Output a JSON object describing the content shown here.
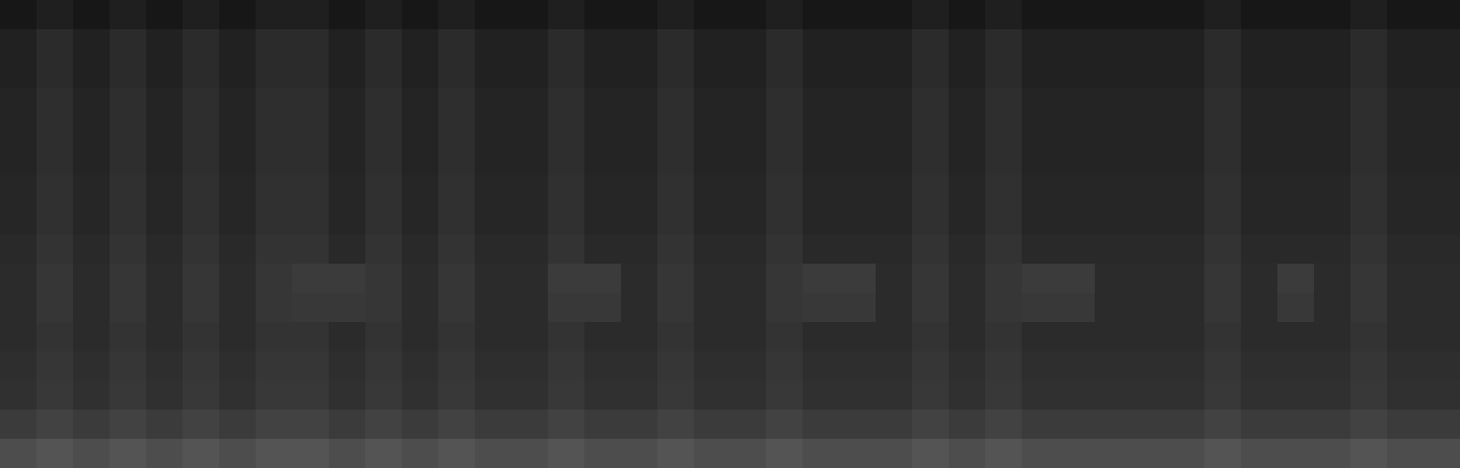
{
  "chart_data": {
    "type": "heatmap",
    "tick_labels": false,
    "zlim": [
      0,
      100
    ],
    "cells": [
      [
        9,
        12,
        9,
        12,
        9,
        12,
        9,
        12,
        12,
        9,
        12,
        9,
        12,
        9,
        9,
        12,
        9,
        9,
        12,
        9,
        9,
        12,
        9,
        9,
        9,
        12,
        9,
        12,
        9,
        9,
        9,
        9,
        9,
        12,
        9,
        9,
        9,
        12,
        9,
        9
      ],
      [
        13,
        17,
        13,
        17,
        13,
        17,
        13,
        17,
        17,
        13,
        17,
        13,
        17,
        13,
        13,
        17,
        13,
        13,
        17,
        13,
        13,
        17,
        13,
        13,
        13,
        17,
        13,
        17,
        13,
        13,
        13,
        13,
        13,
        17,
        13,
        13,
        13,
        17,
        13,
        13
      ],
      [
        13,
        17,
        13,
        17,
        13,
        17,
        13,
        17,
        17,
        13,
        17,
        13,
        17,
        13,
        13,
        17,
        13,
        13,
        17,
        13,
        13,
        17,
        13,
        13,
        13,
        17,
        13,
        17,
        13,
        13,
        13,
        13,
        13,
        17,
        13,
        13,
        13,
        17,
        13,
        13
      ],
      [
        14,
        18,
        14,
        18,
        14,
        18,
        14,
        18,
        18,
        14,
        18,
        14,
        18,
        14,
        14,
        18,
        14,
        14,
        18,
        14,
        14,
        18,
        14,
        14,
        14,
        18,
        14,
        18,
        14,
        14,
        14,
        14,
        14,
        18,
        14,
        14,
        14,
        18,
        14,
        14
      ],
      [
        14,
        18,
        14,
        18,
        14,
        18,
        14,
        18,
        18,
        14,
        18,
        14,
        18,
        14,
        14,
        18,
        14,
        14,
        18,
        14,
        14,
        18,
        14,
        14,
        14,
        18,
        14,
        18,
        14,
        14,
        14,
        14,
        14,
        18,
        14,
        14,
        14,
        18,
        14,
        14
      ],
      [
        14,
        18,
        14,
        18,
        14,
        18,
        14,
        18,
        18,
        14,
        18,
        14,
        18,
        14,
        14,
        18,
        14,
        14,
        18,
        14,
        14,
        18,
        14,
        14,
        14,
        18,
        14,
        18,
        14,
        14,
        14,
        14,
        14,
        18,
        14,
        14,
        14,
        18,
        14,
        14
      ],
      [
        15,
        19,
        15,
        19,
        15,
        19,
        15,
        19,
        19,
        15,
        19,
        15,
        19,
        15,
        15,
        19,
        15,
        15,
        19,
        15,
        15,
        19,
        15,
        15,
        15,
        19,
        15,
        19,
        15,
        15,
        15,
        15,
        15,
        19,
        15,
        15,
        15,
        19,
        15,
        15
      ],
      [
        15,
        19,
        15,
        19,
        15,
        19,
        15,
        19,
        19,
        15,
        19,
        15,
        19,
        15,
        15,
        19,
        15,
        15,
        19,
        15,
        15,
        19,
        15,
        15,
        15,
        19,
        15,
        19,
        15,
        15,
        15,
        15,
        15,
        19,
        15,
        15,
        15,
        19,
        15,
        15
      ],
      [
        16,
        20,
        16,
        20,
        16,
        20,
        16,
        20,
        20,
        16,
        20,
        16,
        20,
        16,
        16,
        20,
        16,
        16,
        20,
        16,
        16,
        20,
        16,
        16,
        16,
        20,
        16,
        20,
        16,
        16,
        16,
        16,
        16,
        20,
        16,
        16,
        16,
        20,
        16,
        16
      ],
      [
        17,
        21,
        17,
        21,
        17,
        21,
        17,
        21,
        23,
        23,
        21,
        17,
        21,
        17,
        17,
        23,
        23,
        17,
        21,
        17,
        17,
        21,
        23,
        23,
        17,
        21,
        17,
        21,
        23,
        23,
        17,
        17,
        17,
        21,
        17,
        23,
        17,
        21,
        17,
        17
      ],
      [
        17,
        21,
        17,
        21,
        17,
        21,
        17,
        21,
        22,
        22,
        21,
        17,
        21,
        17,
        17,
        22,
        22,
        17,
        21,
        17,
        17,
        21,
        22,
        22,
        17,
        21,
        17,
        21,
        22,
        22,
        17,
        17,
        17,
        21,
        17,
        22,
        17,
        21,
        17,
        17
      ],
      [
        17,
        20,
        17,
        20,
        17,
        20,
        17,
        20,
        20,
        17,
        20,
        17,
        20,
        17,
        17,
        20,
        17,
        17,
        20,
        17,
        17,
        20,
        17,
        17,
        17,
        20,
        17,
        20,
        17,
        17,
        17,
        17,
        17,
        20,
        17,
        17,
        17,
        20,
        17,
        17
      ],
      [
        18,
        21,
        18,
        21,
        18,
        21,
        18,
        21,
        21,
        18,
        21,
        18,
        21,
        18,
        18,
        21,
        18,
        18,
        21,
        18,
        18,
        21,
        18,
        18,
        18,
        21,
        18,
        21,
        18,
        18,
        18,
        18,
        18,
        21,
        18,
        18,
        18,
        21,
        18,
        18
      ],
      [
        19,
        22,
        19,
        22,
        19,
        22,
        19,
        22,
        22,
        19,
        22,
        19,
        22,
        19,
        19,
        22,
        19,
        19,
        22,
        19,
        19,
        22,
        19,
        19,
        19,
        22,
        19,
        22,
        19,
        19,
        19,
        19,
        19,
        22,
        19,
        19,
        19,
        22,
        19,
        19
      ],
      [
        23,
        26,
        23,
        26,
        23,
        26,
        23,
        26,
        26,
        23,
        26,
        23,
        26,
        23,
        23,
        26,
        23,
        23,
        26,
        23,
        23,
        26,
        23,
        23,
        23,
        26,
        23,
        26,
        23,
        23,
        23,
        23,
        23,
        26,
        23,
        23,
        23,
        26,
        23,
        23
      ],
      [
        30,
        33,
        30,
        33,
        30,
        33,
        30,
        33,
        33,
        30,
        33,
        30,
        33,
        30,
        30,
        33,
        30,
        30,
        33,
        30,
        30,
        33,
        30,
        30,
        30,
        33,
        30,
        33,
        30,
        30,
        30,
        30,
        30,
        33,
        30,
        30,
        30,
        33,
        30,
        30
      ]
    ]
  }
}
